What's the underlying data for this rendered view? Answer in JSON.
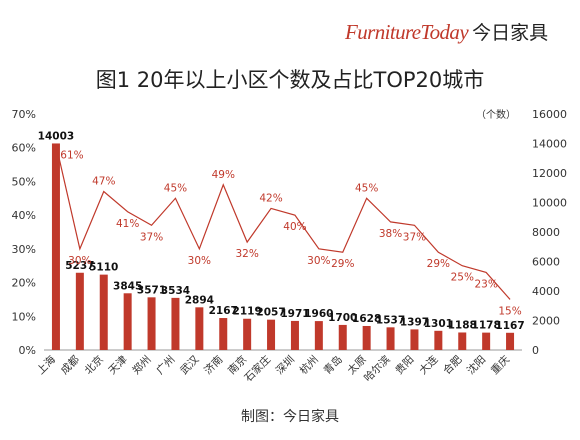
{
  "brand": {
    "wordmark": "FurnitureToday",
    "cn_name": "今日家具"
  },
  "credit": "制图：今日家具",
  "colors": {
    "bar": "#c0392b",
    "line": "#c0392b",
    "label": "#c0392b",
    "text": "#333333"
  },
  "chart_data": {
    "type": "bar",
    "title": "图1  20年以上小区个数及占比TOP20城市",
    "xlabel": "",
    "ylabel": "",
    "y2label": "（个数）",
    "categories": [
      "上海",
      "成都",
      "北京",
      "天津",
      "郑州",
      "广州",
      "武汉",
      "济南",
      "南京",
      "石家庄",
      "深圳",
      "杭州",
      "青岛",
      "太原",
      "哈尔滨",
      "贵阳",
      "大连",
      "合肥",
      "沈阳",
      "重庆"
    ],
    "series": [
      {
        "axis": "right",
        "type": "bar",
        "values": [
          14003,
          5237,
          5110,
          3845,
          3571,
          3534,
          2894,
          2167,
          2119,
          2057,
          1971,
          1960,
          1700,
          1628,
          1537,
          1397,
          1301,
          1188,
          1178,
          1167
        ]
      },
      {
        "axis": "left",
        "type": "line",
        "values": [
          61,
          30,
          47,
          41,
          37,
          45,
          30,
          49,
          32,
          42,
          40,
          30,
          29,
          45,
          38,
          37,
          29,
          25,
          23,
          15
        ]
      }
    ],
    "y_left": {
      "range": [
        0,
        70
      ],
      "ticks": [
        "0%",
        "10%",
        "20%",
        "30%",
        "40%",
        "50%",
        "60%",
        "70%"
      ]
    },
    "y_right": {
      "range": [
        0,
        16000
      ],
      "ticks": [
        "0",
        "2000",
        "4000",
        "6000",
        "8000",
        "10000",
        "12000",
        "14000",
        "16000"
      ]
    },
    "grid": false,
    "legend": "none"
  }
}
